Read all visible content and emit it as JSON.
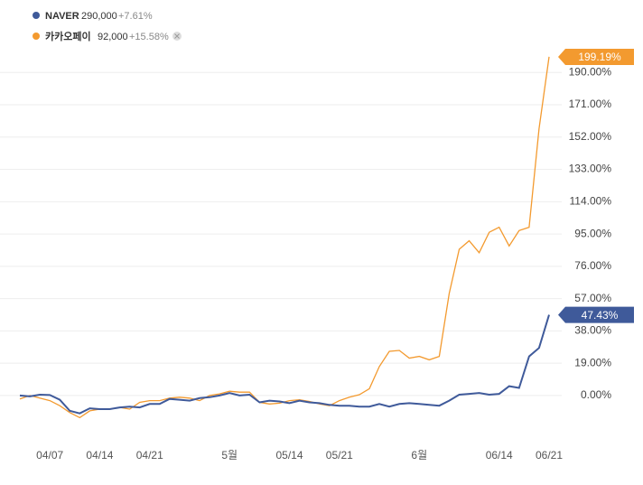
{
  "chart_data": {
    "type": "line",
    "categories": [
      null,
      null,
      null,
      "04/07",
      null,
      null,
      null,
      null,
      "04/14",
      null,
      null,
      null,
      null,
      "04/21",
      null,
      null,
      null,
      null,
      null,
      null,
      null,
      "5월",
      null,
      null,
      null,
      null,
      null,
      "05/14",
      null,
      null,
      null,
      null,
      "05/21",
      null,
      null,
      null,
      null,
      null,
      null,
      null,
      "6월",
      null,
      null,
      null,
      null,
      null,
      null,
      null,
      "06/14",
      null,
      null,
      null,
      null,
      "06/21"
    ],
    "series": [
      {
        "name": "NAVER",
        "price": "290,000",
        "change": "+7.61%",
        "color": "#3f5a9a",
        "values": [
          0,
          -0.5,
          0.5,
          0.3,
          -2.5,
          -9,
          -10.5,
          -7.5,
          -8,
          -8,
          -7,
          -6.5,
          -7,
          -5,
          -5,
          -2,
          -2.5,
          -3,
          -1.5,
          -1,
          0,
          1.5,
          0,
          0.5,
          -4,
          -3,
          -3.5,
          -4.5,
          -3,
          -4,
          -4.5,
          -5.5,
          -6,
          -6,
          -6.5,
          -6.5,
          -5,
          -6.5,
          -5,
          -4.5,
          -5,
          -5.5,
          -6,
          -3,
          0.5,
          1,
          1.5,
          0.5,
          1,
          5.5,
          4.5,
          23,
          28,
          47.43
        ],
        "value_labels": [
          null,
          null,
          null,
          null,
          null,
          null,
          null,
          null,
          null,
          null,
          null,
          null,
          null,
          null,
          null,
          null,
          null,
          null,
          null,
          null,
          null,
          null,
          null,
          null,
          null,
          null,
          null,
          null,
          null,
          null,
          null,
          null,
          null,
          null,
          null,
          null,
          null,
          null,
          null,
          null,
          null,
          null,
          null,
          null,
          null,
          null,
          null,
          null,
          null,
          null,
          null,
          null,
          null,
          "47.43%"
        ]
      },
      {
        "name": "카카오페이",
        "price": "92,000",
        "change": "+15.58%",
        "color": "#f39a2f",
        "values": [
          -2,
          0,
          -1.5,
          -3,
          -6,
          -10,
          -13,
          -9,
          -8,
          -8,
          -7,
          -8,
          -4,
          -3,
          -3,
          -1.5,
          -1,
          -1.5,
          -3,
          0,
          1,
          2.5,
          2,
          2,
          -4,
          -5,
          -4.5,
          -3,
          -2.5,
          -3.5,
          -5,
          -6,
          -3,
          -1,
          0.5,
          4,
          17,
          26,
          26.5,
          22,
          23,
          21,
          23,
          60,
          86,
          91,
          84,
          96,
          99,
          88,
          97,
          99,
          157,
          199.19
        ],
        "value_labels": [
          null,
          null,
          null,
          null,
          null,
          null,
          null,
          null,
          null,
          null,
          null,
          null,
          null,
          null,
          null,
          null,
          null,
          null,
          null,
          null,
          null,
          null,
          null,
          null,
          null,
          null,
          null,
          null,
          null,
          null,
          null,
          null,
          null,
          null,
          null,
          null,
          null,
          null,
          null,
          null,
          null,
          null,
          null,
          null,
          null,
          null,
          null,
          null,
          null,
          null,
          null,
          null,
          null,
          "199.19%"
        ]
      }
    ],
    "ylim": [
      -25,
      205
    ],
    "yticks": [
      {
        "value": 0,
        "label": "0.00%"
      },
      {
        "value": 19,
        "label": "19.00%"
      },
      {
        "value": 38,
        "label": "38.00%"
      },
      {
        "value": 57,
        "label": "57.00%"
      },
      {
        "value": 76,
        "label": "76.00%"
      },
      {
        "value": 95,
        "label": "95.00%"
      },
      {
        "value": 114,
        "label": "114.00%"
      },
      {
        "value": 133,
        "label": "133.00%"
      },
      {
        "value": 152,
        "label": "152.00%"
      },
      {
        "value": 171,
        "label": "171.00%"
      },
      {
        "value": 190,
        "label": "190.00%"
      }
    ],
    "grid": true
  }
}
